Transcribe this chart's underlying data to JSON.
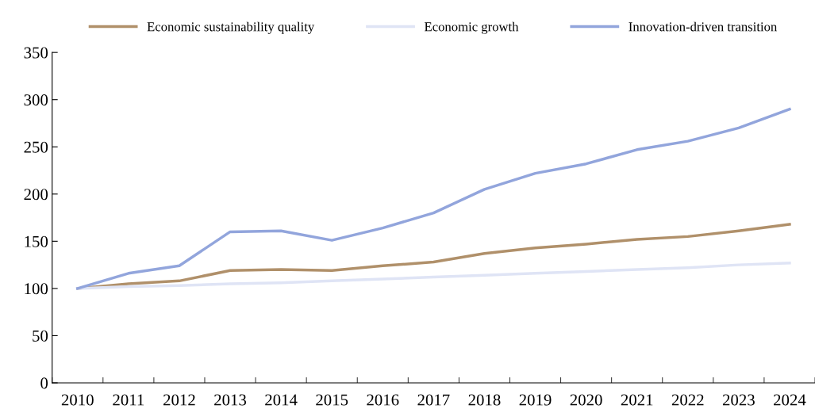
{
  "chart_data": {
    "type": "line",
    "categories": [
      "2010",
      "2011",
      "2012",
      "2013",
      "2014",
      "2015",
      "2016",
      "2017",
      "2018",
      "2019",
      "2020",
      "2021",
      "2022",
      "2023",
      "2024"
    ],
    "series": [
      {
        "name": "Economic sustainability quality",
        "color": "#b0906a",
        "values": [
          100,
          105,
          108,
          119,
          120,
          119,
          124,
          128,
          137,
          143,
          147,
          152,
          155,
          161,
          168
        ]
      },
      {
        "name": "Economic growth",
        "color": "#dfe4f5",
        "values": [
          100,
          102,
          103,
          105,
          106,
          108,
          110,
          112,
          114,
          116,
          118,
          120,
          122,
          125,
          127
        ]
      },
      {
        "name": "Innovation-driven transition",
        "color": "#92a5dc",
        "values": [
          100,
          116,
          124,
          160,
          161,
          151,
          164,
          180,
          205,
          222,
          232,
          247,
          256,
          270,
          290
        ]
      }
    ],
    "ylim": [
      0,
      350
    ],
    "yticks": [
      0,
      50,
      100,
      150,
      200,
      250,
      300,
      350
    ],
    "legend": "top",
    "grid": false,
    "marker": "none",
    "line_style": "solid"
  }
}
